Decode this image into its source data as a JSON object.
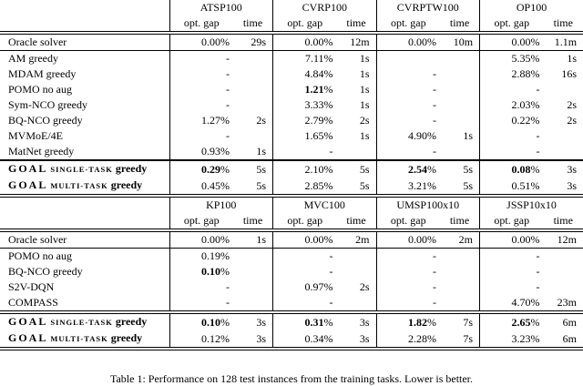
{
  "caption": "Table 1: Performance on 128 test instances from the training tasks. Lower is better.",
  "tables": [
    {
      "col_headers": [
        "ATSP100",
        "CVRP100",
        "CVRPTW100",
        "OP100"
      ],
      "subhead_gap": "opt. gap",
      "subhead_time": "time",
      "pre_goal_rule": "single",
      "oracle": {
        "label": "Oracle solver",
        "cells": [
          {
            "gap": "0.00",
            "pct": "%",
            "time": "29s"
          },
          {
            "gap": "0.00",
            "pct": "%",
            "time": "12m"
          },
          {
            "gap": "0.00",
            "pct": "%",
            "time": "10m"
          },
          {
            "gap": "0.00",
            "pct": "%",
            "time": "1.1m"
          }
        ]
      },
      "rows": [
        {
          "label": "AM greedy",
          "cells": [
            {
              "gap": "-"
            },
            {
              "gap": "7.11",
              "pct": "%",
              "time": "1s"
            },
            {},
            {
              "gap": "5.35",
              "pct": "%",
              "time": "1s"
            }
          ]
        },
        {
          "label": "MDAM greedy",
          "cells": [
            {
              "gap": "-"
            },
            {
              "gap": "4.84",
              "pct": "%",
              "time": "1s"
            },
            {
              "gap": "-"
            },
            {
              "gap": "2.88",
              "pct": "%",
              "time": "16s"
            }
          ]
        },
        {
          "label": "POMO no aug",
          "cells": [
            {
              "gap": "-"
            },
            {
              "gap": "1.21",
              "pct": "%",
              "time": "1s",
              "bold": true
            },
            {
              "gap": "-"
            },
            {
              "gap": "-"
            }
          ]
        },
        {
          "label": "Sym-NCO greedy",
          "cells": [
            {
              "gap": "-"
            },
            {
              "gap": "3.33",
              "pct": "%",
              "time": "1s"
            },
            {
              "gap": "-"
            },
            {
              "gap": "2.03",
              "pct": "%",
              "time": "2s"
            }
          ]
        },
        {
          "label": "BQ-NCO greedy",
          "cells": [
            {
              "gap": "1.27",
              "pct": "%",
              "time": "2s"
            },
            {
              "gap": "2.79",
              "pct": "%",
              "time": "2s"
            },
            {
              "gap": "-"
            },
            {
              "gap": "0.22",
              "pct": "%",
              "time": "2s"
            }
          ]
        },
        {
          "label": "MVMoE/4E",
          "cells": [
            {
              "gap": "-"
            },
            {
              "gap": "1.65",
              "pct": "%",
              "time": "1s"
            },
            {
              "gap": "4.90",
              "pct": "%",
              "time": "1s"
            },
            {
              "gap": "-"
            }
          ]
        },
        {
          "label": "MatNet greedy",
          "cells": [
            {
              "gap": "0.93",
              "pct": "%",
              "time": "1s"
            },
            {
              "gap": "-"
            },
            {
              "gap": "-"
            },
            {
              "gap": "-"
            }
          ]
        }
      ],
      "goal_rows": [
        {
          "pre": "GOAL",
          "sc": "single-task",
          "end": "greedy",
          "cells": [
            {
              "gap": "0.29",
              "pct": "%",
              "time": "5s",
              "bold": true
            },
            {
              "gap": "2.10",
              "pct": "%",
              "time": "5s"
            },
            {
              "gap": "2.54",
              "pct": "%",
              "time": "5s",
              "bold": true
            },
            {
              "gap": "0.08",
              "pct": "%",
              "time": "3s",
              "bold": true
            }
          ]
        },
        {
          "pre": "GOAL",
          "sc": "multi-task",
          "end": "greedy",
          "cells": [
            {
              "gap": "0.45",
              "pct": "%",
              "time": "5s"
            },
            {
              "gap": "2.85",
              "pct": "%",
              "time": "5s"
            },
            {
              "gap": "3.21",
              "pct": "%",
              "time": "5s"
            },
            {
              "gap": "0.51",
              "pct": "%",
              "time": "3s"
            }
          ]
        }
      ]
    },
    {
      "col_headers": [
        "KP100",
        "MVC100",
        "UMSP100x10",
        "JSSP10x10"
      ],
      "subhead_gap": "opt. gap",
      "subhead_time": "time",
      "pre_goal_rule": "double",
      "oracle": {
        "label": "Oracle solver",
        "cells": [
          {
            "gap": "0.00",
            "pct": "%",
            "time": "1s"
          },
          {
            "gap": "0.00",
            "pct": "%",
            "time": "2m"
          },
          {
            "gap": "0.00",
            "pct": "%",
            "time": "2m"
          },
          {
            "gap": "0.00",
            "pct": "%",
            "time": "12m"
          }
        ]
      },
      "rows": [
        {
          "label": "POMO no aug",
          "cells": [
            {
              "gap": "0.19",
              "pct": "%"
            },
            {
              "gap": "-"
            },
            {
              "gap": "-"
            },
            {
              "gap": "-"
            }
          ]
        },
        {
          "label": "BQ-NCO greedy",
          "cells": [
            {
              "gap": "0.10",
              "pct": "%",
              "bold": true
            },
            {
              "gap": "-"
            },
            {
              "gap": "-"
            },
            {
              "gap": "-"
            }
          ]
        },
        {
          "label": "S2V-DQN",
          "cells": [
            {
              "gap": "-"
            },
            {
              "gap": "0.97",
              "pct": "%",
              "time": "2s"
            },
            {
              "gap": "-"
            },
            {
              "gap": "-"
            }
          ]
        },
        {
          "label": "COMPASS",
          "cells": [
            {
              "gap": "-"
            },
            {
              "gap": "-"
            },
            {
              "gap": "-"
            },
            {
              "gap": "4.70",
              "pct": "%",
              "time": "23m"
            }
          ]
        }
      ],
      "goal_rows": [
        {
          "pre": "GOAL",
          "sc": "single-task",
          "end": "greedy",
          "cells": [
            {
              "gap": "0.10",
              "pct": "%",
              "time": "3s",
              "bold": true
            },
            {
              "gap": "0.31",
              "pct": "%",
              "time": "3s",
              "bold": true
            },
            {
              "gap": "1.82",
              "pct": "%",
              "time": "7s",
              "bold": true
            },
            {
              "gap": "2.65",
              "pct": "%",
              "time": "6m",
              "bold": true
            }
          ]
        },
        {
          "pre": "GOAL",
          "sc": "multi-task",
          "end": "greedy",
          "cells": [
            {
              "gap": "0.12",
              "pct": "%",
              "time": "3s"
            },
            {
              "gap": "0.34",
              "pct": "%",
              "time": "3s"
            },
            {
              "gap": "2.28",
              "pct": "%",
              "time": "7s"
            },
            {
              "gap": "3.23",
              "pct": "%",
              "time": "6m"
            }
          ]
        }
      ]
    }
  ]
}
